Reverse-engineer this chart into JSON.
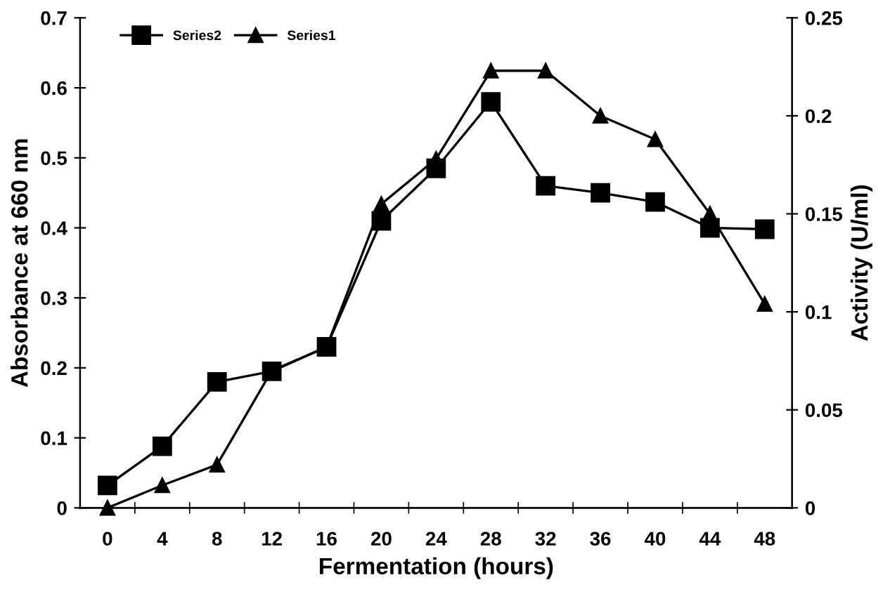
{
  "chart_data": {
    "type": "line",
    "xlabel": "Fermentation (hours)",
    "ylabel": "Absorbance at 660 nm",
    "y2label": "Activity (U/ml)",
    "categories": [
      "0",
      "4",
      "8",
      "12",
      "16",
      "20",
      "24",
      "28",
      "32",
      "36",
      "40",
      "44",
      "48"
    ],
    "series": [
      {
        "name": "Series2",
        "color": "#000000",
        "marker": "square",
        "values": [
          0.032,
          0.088,
          0.18,
          0.195,
          0.23,
          0.41,
          0.485,
          0.58,
          0.46,
          0.45,
          0.437,
          0.4,
          0.398
        ]
      },
      {
        "name": "Series1",
        "color": "#000000",
        "marker": "triangle",
        "axis": "y2",
        "values": [
          0,
          0.0115,
          0.022,
          0.07,
          0.082,
          0.155,
          0.178,
          0.223,
          0.223,
          0.2,
          0.188,
          0.15,
          0.104
        ]
      }
    ],
    "ylim": [
      0,
      0.7
    ],
    "yticks": [
      0,
      0.1,
      0.2,
      0.3,
      0.4,
      0.5,
      0.6,
      0.7
    ],
    "y2lim": [
      0,
      0.25
    ],
    "y2ticks": [
      0,
      0.05,
      0.1,
      0.15,
      0.2,
      0.25
    ],
    "grid": false,
    "legend": "top left",
    "line_style": "solid"
  }
}
